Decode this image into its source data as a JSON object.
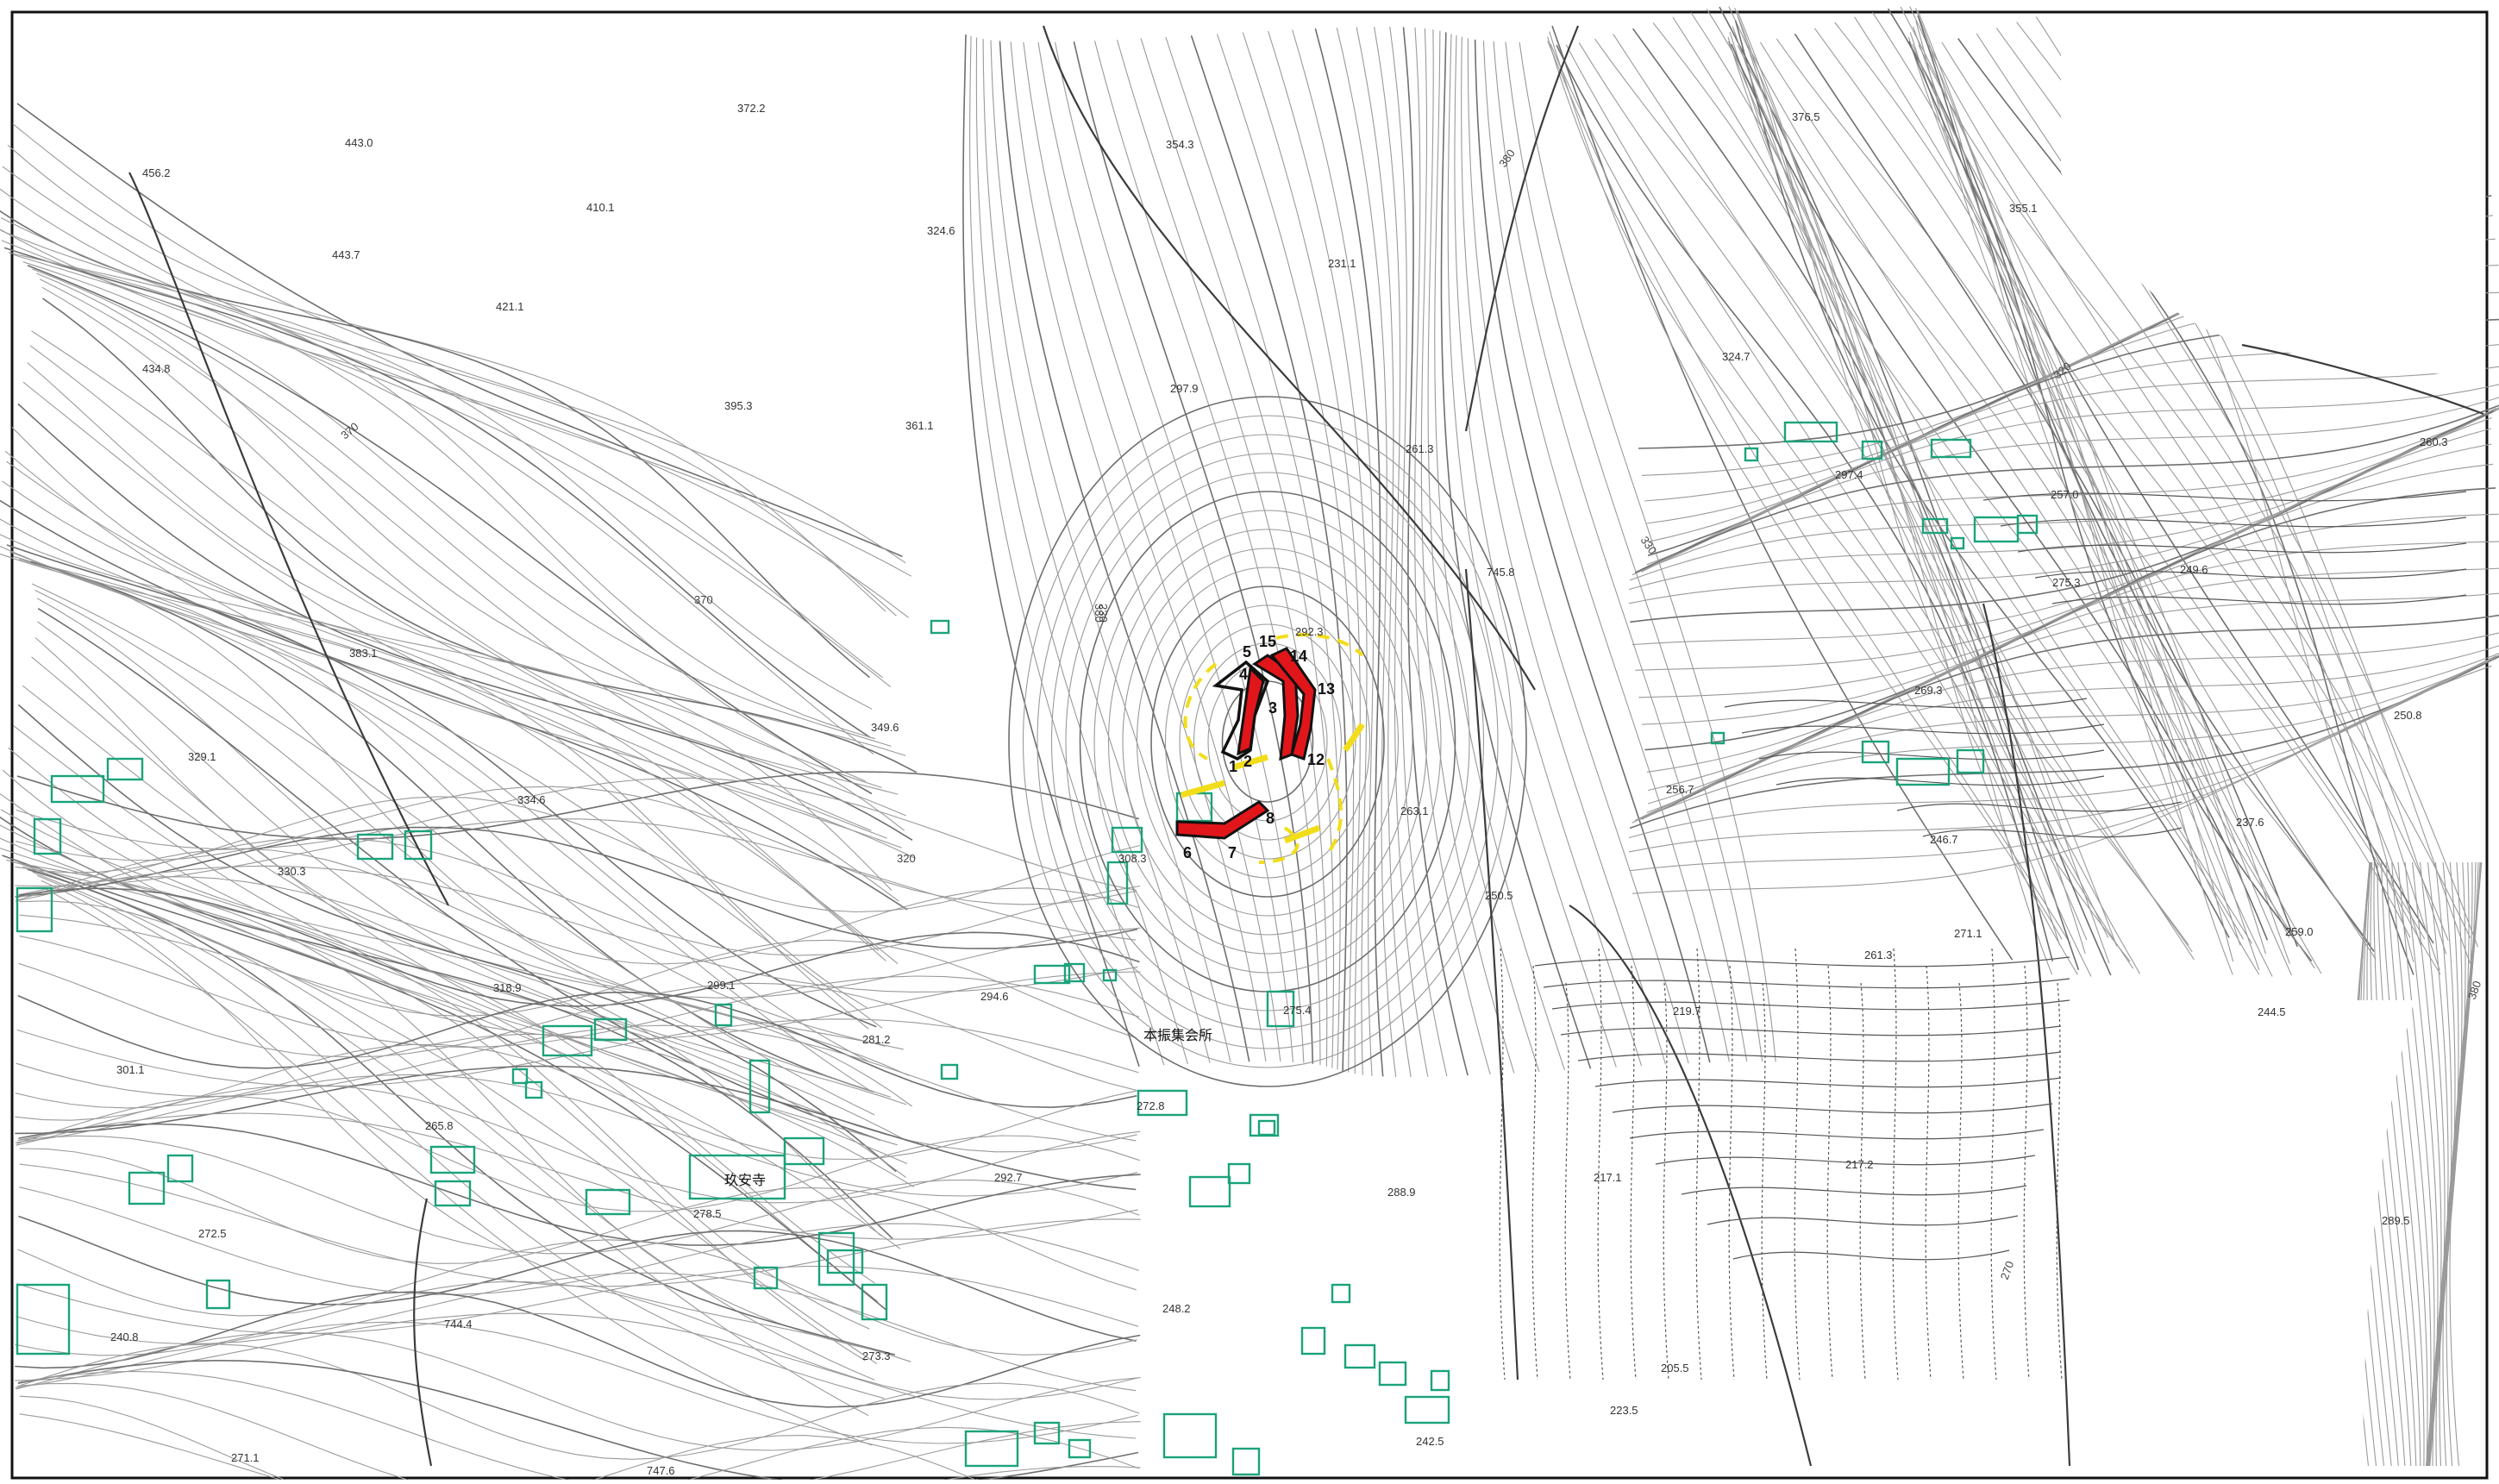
{
  "map": {
    "spot_heights": [
      "456.2",
      "443.0",
      "443.7",
      "434.8",
      "410.1",
      "421.1",
      "372.2",
      "354.3",
      "324.6",
      "376.5",
      "355.1",
      "231.1",
      "324.7",
      "395.3",
      "361.1",
      "297.9",
      "261.3",
      "297.4",
      "257.0",
      "260.3",
      "383.1",
      "349.6",
      "292.3",
      "275.3",
      "249.6",
      "329.1",
      "334.6",
      "269.3",
      "250.8",
      "330.3",
      "256.7",
      "246.7",
      "237.6",
      "308.3",
      "263.1",
      "250.5",
      "261.3",
      "271.1",
      "259.0",
      "318.9",
      "299.1",
      "294.6",
      "275.4",
      "219.7",
      "244.5",
      "281.2",
      "301.1",
      "272.8",
      "265.8",
      "292.7",
      "217.1",
      "217.2",
      "278.5",
      "272.5",
      "289.5",
      "288.9",
      "744.4",
      "240.8",
      "248.2",
      "273.3",
      "205.5",
      "223.5",
      "242.5",
      "271.1",
      "747.6",
      "745.8"
    ],
    "contour_labels": [
      "380",
      "320",
      "380",
      "370",
      "370",
      "330",
      "320",
      "380",
      "270",
      "230"
    ],
    "place_names": [
      "本振集会所",
      "玖安寺"
    ],
    "site_numbers": [
      "1",
      "2",
      "3",
      "4",
      "5",
      "6",
      "7",
      "8",
      "12",
      "13",
      "14",
      "15"
    ],
    "colors": {
      "contour": "#6f6f6f",
      "building": "#1aa37a",
      "target_area": "#e0161b",
      "boundary": "#f2dd1a",
      "frame": "#111111"
    }
  }
}
